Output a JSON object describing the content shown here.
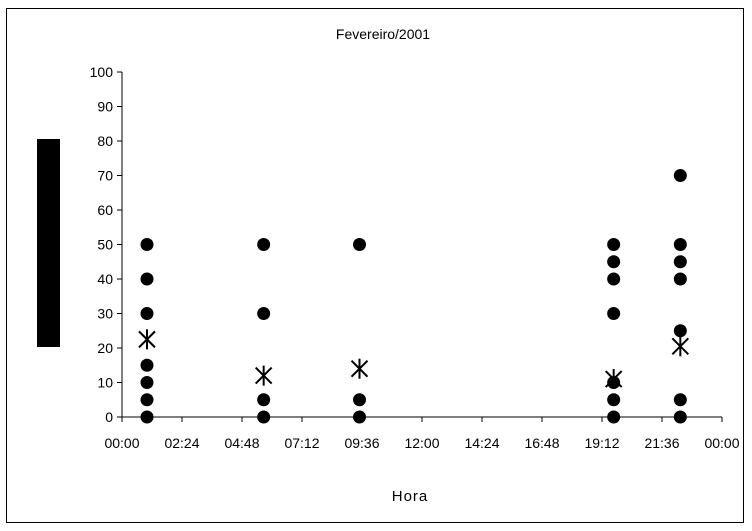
{
  "chart_data": {
    "type": "scatter",
    "title": "Fevereiro/2001",
    "xlabel": "Hora",
    "ylabel": "",
    "x_tick_labels": [
      "00:00",
      "02:24",
      "04:48",
      "07:12",
      "09:36",
      "12:00",
      "14:24",
      "16:48",
      "19:12",
      "21:36",
      "00:00"
    ],
    "x_range_hours": [
      0,
      24
    ],
    "y_tick_labels": [
      "0",
      "10",
      "20",
      "30",
      "40",
      "50",
      "60",
      "70",
      "80",
      "90",
      "100"
    ],
    "ylim": [
      0,
      100
    ],
    "grid": false,
    "legend": "none",
    "series": [
      {
        "marker": "circle",
        "color": "#000000",
        "points": [
          {
            "x": "01:00",
            "y": 0
          },
          {
            "x": "01:00",
            "y": 5
          },
          {
            "x": "01:00",
            "y": 10
          },
          {
            "x": "01:00",
            "y": 15
          },
          {
            "x": "01:00",
            "y": 30
          },
          {
            "x": "01:00",
            "y": 40
          },
          {
            "x": "01:00",
            "y": 50
          },
          {
            "x": "05:40",
            "y": 0
          },
          {
            "x": "05:40",
            "y": 5
          },
          {
            "x": "05:40",
            "y": 30
          },
          {
            "x": "05:40",
            "y": 50
          },
          {
            "x": "09:30",
            "y": 0
          },
          {
            "x": "09:30",
            "y": 5
          },
          {
            "x": "09:30",
            "y": 50
          },
          {
            "x": "19:40",
            "y": 0
          },
          {
            "x": "19:40",
            "y": 5
          },
          {
            "x": "19:40",
            "y": 10
          },
          {
            "x": "19:40",
            "y": 30
          },
          {
            "x": "19:40",
            "y": 40
          },
          {
            "x": "19:40",
            "y": 45
          },
          {
            "x": "19:40",
            "y": 50
          },
          {
            "x": "22:20",
            "y": 0
          },
          {
            "x": "22:20",
            "y": 5
          },
          {
            "x": "22:20",
            "y": 25
          },
          {
            "x": "22:20",
            "y": 40
          },
          {
            "x": "22:20",
            "y": 45
          },
          {
            "x": "22:20",
            "y": 50
          },
          {
            "x": "22:20",
            "y": 70
          }
        ]
      },
      {
        "marker": "asterisk",
        "color": "#000000",
        "points": [
          {
            "x": "01:00",
            "y": 22.5
          },
          {
            "x": "05:40",
            "y": 12
          },
          {
            "x": "09:30",
            "y": 14
          },
          {
            "x": "19:40",
            "y": 11
          },
          {
            "x": "22:20",
            "y": 20.5
          }
        ]
      }
    ]
  }
}
